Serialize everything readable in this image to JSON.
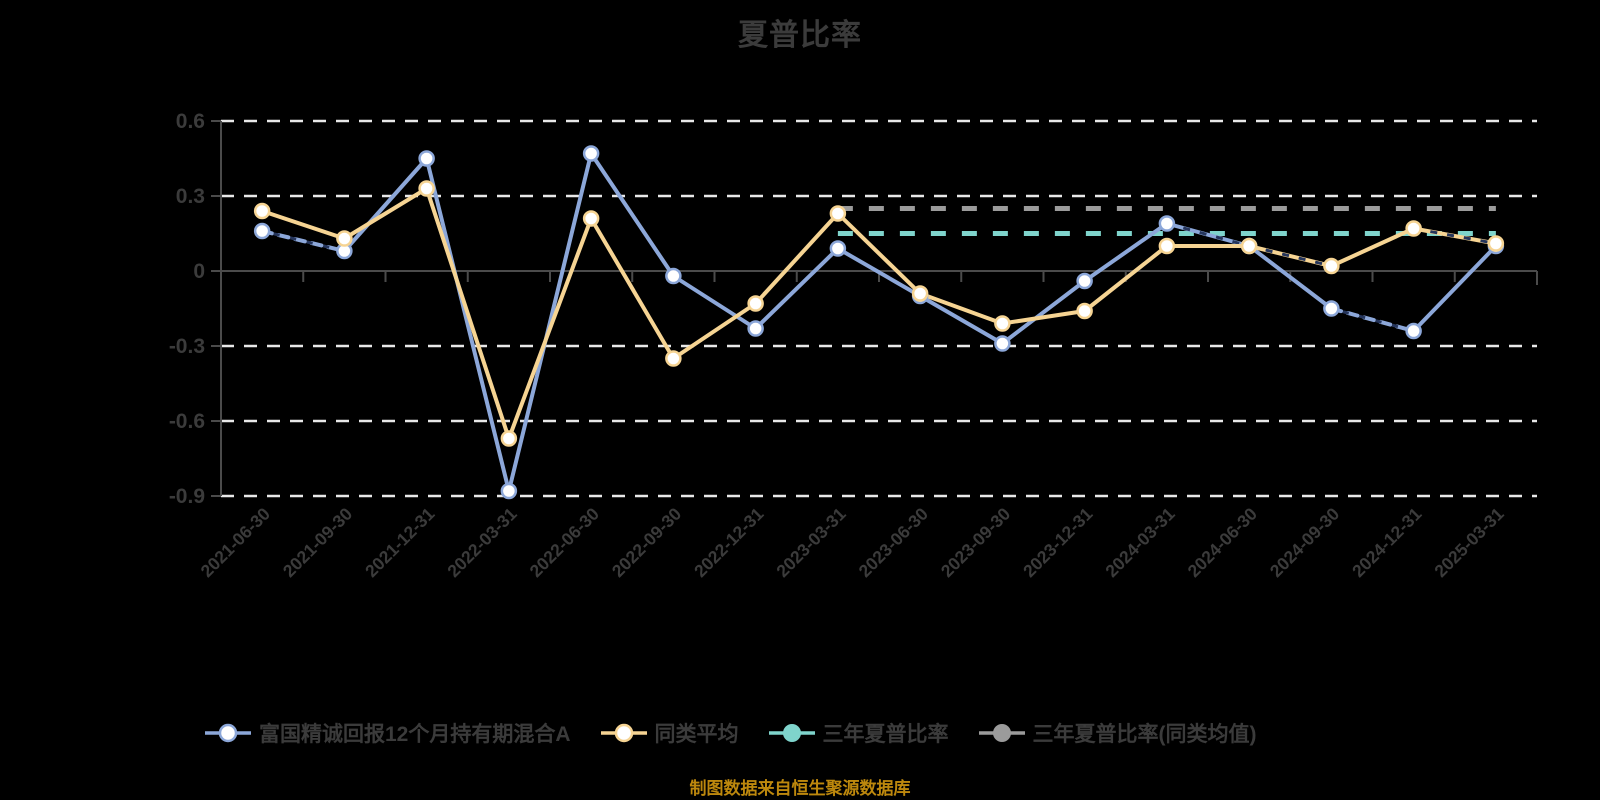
{
  "chart_data": {
    "type": "line",
    "title": "夏普比率",
    "source_note": "制图数据来自恒生聚源数据库",
    "ylim": [
      -0.9,
      0.6
    ],
    "grid": true,
    "legend_position": "bottom",
    "yticks": [
      {
        "label": "0.6",
        "value": 0.6
      },
      {
        "label": "0.3",
        "value": 0.3
      },
      {
        "label": "0",
        "value": 0
      },
      {
        "label": "-0.3",
        "value": -0.3
      },
      {
        "label": "-0.6",
        "value": -0.6
      },
      {
        "label": "-0.9",
        "value": -0.9
      }
    ],
    "categories": [
      "2021-06-30",
      "2021-09-30",
      "2021-12-31",
      "2022-03-31",
      "2022-06-30",
      "2022-09-30",
      "2022-12-31",
      "2023-03-31",
      "2023-06-30",
      "2023-09-30",
      "2023-12-31",
      "2024-03-31",
      "2024-06-30",
      "2024-09-30",
      "2024-12-31",
      "2025-03-31"
    ],
    "series": [
      {
        "name": "富国精诚回报12个月持有期混合A",
        "type": "line",
        "color": "#8CA7D9",
        "accent_color": "#25355C",
        "marker": "open-circle",
        "values": [
          0.16,
          0.08,
          0.45,
          -0.88,
          0.47,
          -0.02,
          -0.23,
          0.09,
          -0.1,
          -0.29,
          -0.04,
          0.19,
          0.1,
          -0.15,
          -0.24,
          0.1
        ],
        "dashed_segments": [
          0,
          13
        ],
        "accent_segments": [
          11
        ]
      },
      {
        "name": "同类平均",
        "type": "line",
        "color": "#F6D493",
        "accent_color": "#25355C",
        "marker": "open-circle",
        "values": [
          0.24,
          0.13,
          0.33,
          -0.67,
          0.21,
          -0.35,
          -0.13,
          0.23,
          -0.09,
          -0.21,
          -0.16,
          0.1,
          0.1,
          0.02,
          0.17,
          0.11
        ],
        "dashed_segments": [],
        "accent_segments": [
          12,
          14
        ]
      },
      {
        "name": "三年夏普比率",
        "type": "hline",
        "color": "#7FD4CC",
        "value": 0.15,
        "span": [
          7,
          15
        ]
      },
      {
        "name": "三年夏普比率(同类均值)",
        "type": "hline",
        "color": "#9B9B9B",
        "value": 0.25,
        "span": [
          7,
          15
        ]
      }
    ],
    "colors": {
      "background": "#000000",
      "gridline": "#E8E8E8",
      "axis": "#4B4B4B",
      "text": "#3B3B3B",
      "source_note": "#BD880D"
    }
  }
}
